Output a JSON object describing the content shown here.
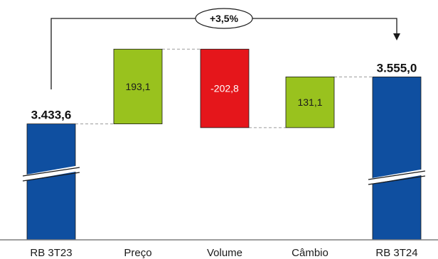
{
  "chart_data": {
    "type": "waterfall",
    "categories": [
      "RB 3T23",
      "Preço",
      "Volume",
      "Câmbio",
      "RB 3T24"
    ],
    "steps": [
      {
        "category": "RB 3T23",
        "kind": "total",
        "value": 3433.6,
        "label": "3.433,6",
        "color": "#0F4FA0"
      },
      {
        "category": "Preço",
        "kind": "delta",
        "value": 193.1,
        "label": "193,1",
        "color": "#99C21E"
      },
      {
        "category": "Volume",
        "kind": "delta",
        "value": -202.8,
        "label": "-202,8",
        "color": "#E5161B"
      },
      {
        "category": "Câmbio",
        "kind": "delta",
        "value": 131.1,
        "label": "131,1",
        "color": "#99C21E"
      },
      {
        "category": "RB 3T24",
        "kind": "total",
        "value": 3555.0,
        "label": "3.555,0",
        "color": "#0F4FA0"
      }
    ],
    "change_annotation": "+3,5%",
    "axis_break": true,
    "gridlines": false,
    "legend": "none"
  }
}
